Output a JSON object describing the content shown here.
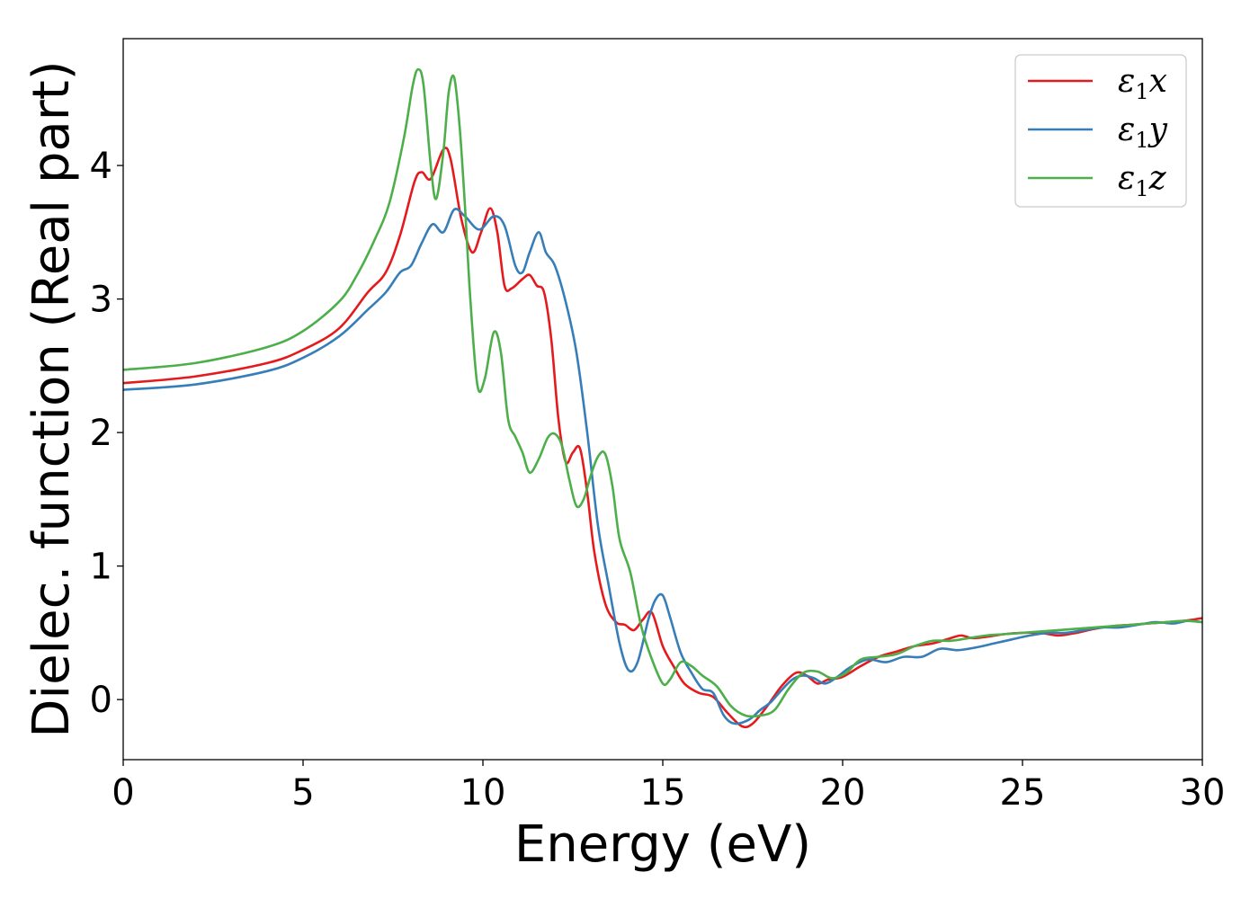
{
  "chart_data": {
    "type": "line",
    "title": "",
    "xlabel": "Energy (eV)",
    "ylabel": "Dielec. function (Real part)",
    "xlim": [
      0,
      30
    ],
    "ylim": [
      -0.45,
      4.95
    ],
    "xticks": [
      0,
      5,
      10,
      15,
      20,
      25,
      30
    ],
    "xtick_labels": [
      "0",
      "5",
      "10",
      "15",
      "20",
      "25",
      "30"
    ],
    "yticks": [
      0,
      1,
      2,
      3,
      4
    ],
    "ytick_labels": [
      "0",
      "1",
      "2",
      "3",
      "4"
    ],
    "grid": false,
    "legend_position": "top-right",
    "series": [
      {
        "name": "ε1x",
        "legend_base": "ε",
        "legend_sub": "1",
        "legend_tail": "x",
        "color": "#e41a1c",
        "x": [
          0,
          2,
          4,
          5,
          6,
          6.8,
          7.3,
          7.7,
          8.1,
          8.3,
          8.55,
          8.9,
          9.1,
          9.4,
          9.7,
          9.95,
          10.2,
          10.4,
          10.6,
          10.8,
          11.1,
          11.3,
          11.5,
          11.7,
          11.9,
          12.1,
          12.3,
          12.5,
          12.7,
          12.9,
          13.1,
          13.4,
          13.7,
          13.95,
          14.2,
          14.45,
          14.7,
          15.0,
          15.3,
          15.6,
          16.0,
          16.4,
          16.8,
          17.2,
          17.5,
          17.9,
          18.3,
          18.7,
          19.0,
          19.3,
          19.6,
          20.0,
          20.5,
          21.0,
          21.5,
          22.0,
          22.5,
          23.0,
          23.3,
          23.6,
          24.0,
          24.5,
          25.0,
          25.5,
          26.0,
          26.5,
          27.0,
          27.5,
          28.0,
          28.5,
          29.0,
          29.5,
          30.0
        ],
        "y": [
          2.37,
          2.42,
          2.52,
          2.62,
          2.78,
          3.05,
          3.2,
          3.48,
          3.88,
          3.95,
          3.9,
          4.12,
          4.05,
          3.6,
          3.35,
          3.5,
          3.68,
          3.5,
          3.1,
          3.08,
          3.15,
          3.18,
          3.1,
          3.05,
          2.7,
          2.1,
          1.78,
          1.85,
          1.88,
          1.55,
          1.1,
          0.72,
          0.58,
          0.56,
          0.52,
          0.6,
          0.65,
          0.4,
          0.25,
          0.12,
          0.05,
          0.02,
          -0.1,
          -0.2,
          -0.18,
          -0.05,
          0.1,
          0.2,
          0.18,
          0.12,
          0.15,
          0.17,
          0.25,
          0.32,
          0.36,
          0.4,
          0.42,
          0.46,
          0.48,
          0.46,
          0.47,
          0.49,
          0.5,
          0.5,
          0.48,
          0.5,
          0.53,
          0.55,
          0.56,
          0.57,
          0.58,
          0.59,
          0.61
        ]
      },
      {
        "name": "ε1y",
        "legend_base": "ε",
        "legend_sub": "1",
        "legend_tail": "y",
        "color": "#377eb8",
        "x": [
          0,
          2,
          4,
          5,
          6,
          6.8,
          7.3,
          7.7,
          8.0,
          8.3,
          8.6,
          8.9,
          9.2,
          9.5,
          9.9,
          10.3,
          10.6,
          10.9,
          11.1,
          11.3,
          11.55,
          11.75,
          12.0,
          12.3,
          12.6,
          12.9,
          13.2,
          13.5,
          13.8,
          14.05,
          14.3,
          14.6,
          14.8,
          15.0,
          15.2,
          15.5,
          15.8,
          16.1,
          16.4,
          16.7,
          17.0,
          17.4,
          17.7,
          18.0,
          18.3,
          18.6,
          18.9,
          19.2,
          19.5,
          19.8,
          20.2,
          20.7,
          21.2,
          21.7,
          22.2,
          22.7,
          23.2,
          23.7,
          24.2,
          24.7,
          25.2,
          25.7,
          26.2,
          26.7,
          27.2,
          27.7,
          28.2,
          28.7,
          29.2,
          29.6,
          30.0
        ],
        "y": [
          2.32,
          2.36,
          2.46,
          2.56,
          2.72,
          2.92,
          3.05,
          3.2,
          3.25,
          3.42,
          3.56,
          3.5,
          3.67,
          3.62,
          3.52,
          3.62,
          3.55,
          3.25,
          3.2,
          3.35,
          3.5,
          3.35,
          3.25,
          2.98,
          2.6,
          2.0,
          1.3,
          0.85,
          0.42,
          0.22,
          0.28,
          0.6,
          0.75,
          0.78,
          0.62,
          0.35,
          0.2,
          0.08,
          0.05,
          -0.12,
          -0.18,
          -0.15,
          -0.08,
          -0.02,
          0.07,
          0.15,
          0.18,
          0.16,
          0.12,
          0.16,
          0.24,
          0.3,
          0.28,
          0.32,
          0.32,
          0.38,
          0.37,
          0.39,
          0.42,
          0.45,
          0.48,
          0.5,
          0.5,
          0.52,
          0.54,
          0.54,
          0.56,
          0.58,
          0.57,
          0.59,
          0.58
        ]
      },
      {
        "name": "ε1z",
        "legend_base": "ε",
        "legend_sub": "1",
        "legend_tail": "z",
        "color": "#4daf4a",
        "x": [
          0,
          2,
          4,
          5,
          6,
          6.5,
          7.0,
          7.4,
          7.8,
          8.05,
          8.2,
          8.35,
          8.55,
          8.7,
          8.9,
          9.05,
          9.2,
          9.35,
          9.5,
          9.65,
          9.85,
          10.05,
          10.3,
          10.5,
          10.7,
          10.9,
          11.1,
          11.3,
          11.55,
          11.8,
          12.0,
          12.2,
          12.4,
          12.6,
          12.8,
          13.0,
          13.2,
          13.4,
          13.6,
          13.8,
          14.1,
          14.4,
          14.7,
          15.0,
          15.2,
          15.5,
          15.8,
          16.1,
          16.5,
          16.9,
          17.3,
          17.7,
          18.1,
          18.5,
          18.9,
          19.3,
          19.7,
          20.1,
          20.5,
          21.0,
          21.5,
          22.0,
          22.5,
          23.0,
          23.5,
          24.0,
          24.5,
          25.0,
          25.5,
          26.0,
          26.5,
          27.0,
          27.5,
          28.0,
          28.5,
          29.0,
          29.5,
          30.0
        ],
        "y": [
          2.47,
          2.52,
          2.64,
          2.76,
          2.98,
          3.18,
          3.45,
          3.72,
          4.2,
          4.6,
          4.72,
          4.6,
          4.0,
          3.75,
          4.1,
          4.55,
          4.66,
          4.3,
          3.7,
          3.0,
          2.35,
          2.4,
          2.75,
          2.6,
          2.1,
          1.97,
          1.85,
          1.7,
          1.8,
          1.96,
          1.99,
          1.9,
          1.65,
          1.45,
          1.5,
          1.68,
          1.82,
          1.84,
          1.6,
          1.2,
          0.95,
          0.55,
          0.3,
          0.12,
          0.15,
          0.28,
          0.25,
          0.18,
          0.1,
          -0.05,
          -0.12,
          -0.12,
          -0.08,
          0.08,
          0.2,
          0.21,
          0.16,
          0.2,
          0.3,
          0.32,
          0.34,
          0.4,
          0.44,
          0.44,
          0.46,
          0.48,
          0.49,
          0.5,
          0.51,
          0.52,
          0.53,
          0.54,
          0.55,
          0.56,
          0.57,
          0.58,
          0.59,
          0.58
        ]
      }
    ]
  }
}
